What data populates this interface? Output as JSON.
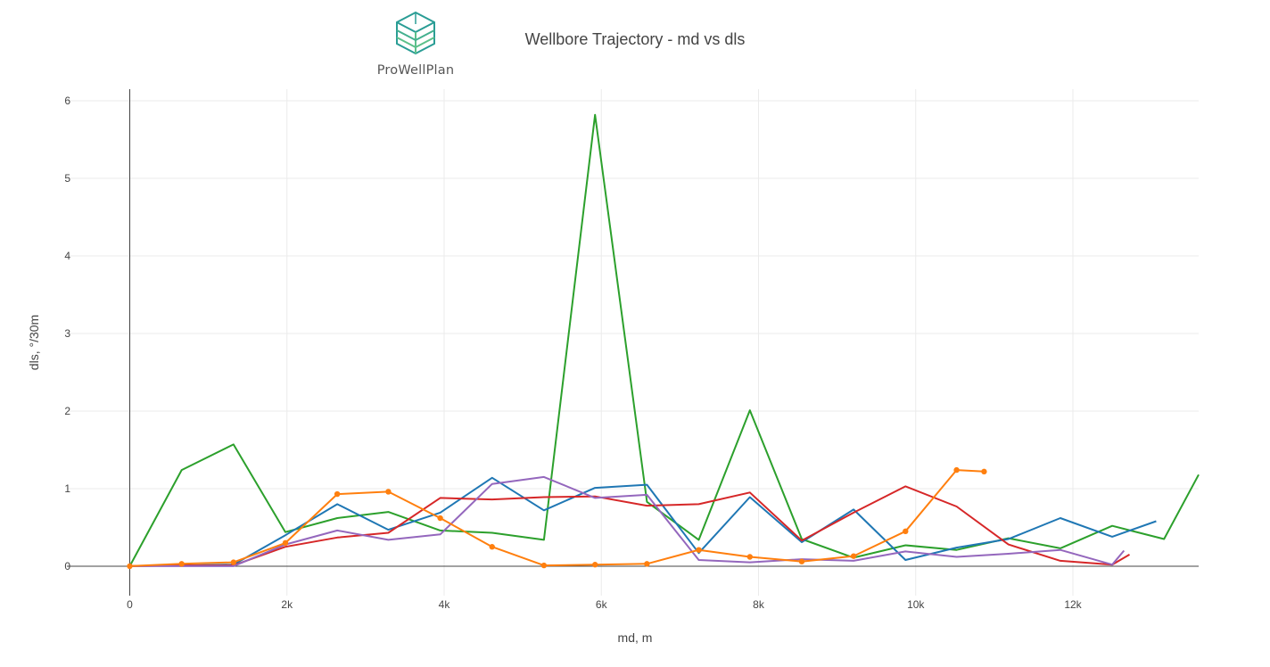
{
  "logo": {
    "text": "ProWellPlan"
  },
  "chart_data": {
    "type": "line",
    "title": "Wellbore Trajectory - md vs dls",
    "xlabel": "md, m",
    "ylabel": "dls, °/30m",
    "xlim": [
      -800,
      13600
    ],
    "ylim": [
      -0.38,
      6.15
    ],
    "xticks": [
      0,
      2000,
      4000,
      6000,
      8000,
      10000,
      12000
    ],
    "xtick_labels": [
      "0",
      "2k",
      "4k",
      "6k",
      "8k",
      "10k",
      "12k"
    ],
    "yticks": [
      0,
      1,
      2,
      3,
      4,
      5,
      6
    ],
    "ytick_labels": [
      "0",
      "1",
      "2",
      "3",
      "4",
      "5",
      "6"
    ],
    "grid": true,
    "legend": "none",
    "colors": {
      "blue": "#1f77b4",
      "orange": "#ff7f0e",
      "green": "#2ca02c",
      "red": "#d62728",
      "purple": "#9467bd"
    },
    "series": [
      {
        "color": "#2ca02c",
        "markers": false,
        "x": [
          0,
          660,
          1320,
          1980,
          2640,
          3290,
          3950,
          4610,
          5270,
          5920,
          6580,
          7240,
          7890,
          8550,
          9210,
          9870,
          10520,
          11180,
          11840,
          12500,
          13160,
          13600
        ],
        "y": [
          0,
          1.24,
          1.57,
          0.44,
          0.62,
          0.7,
          0.46,
          0.43,
          0.34,
          5.82,
          0.83,
          0.34,
          2.01,
          0.35,
          0.11,
          0.27,
          0.21,
          0.36,
          0.23,
          0.52,
          0.35,
          1.18
        ]
      },
      {
        "color": "#1f77b4",
        "markers": false,
        "x": [
          0,
          660,
          1320,
          1980,
          2640,
          3290,
          3950,
          4610,
          5270,
          5920,
          6580,
          7240,
          7890,
          8550,
          9210,
          9870,
          10520,
          11180,
          11840,
          12500,
          13060
        ],
        "y": [
          0,
          0.01,
          0.02,
          0.4,
          0.8,
          0.47,
          0.69,
          1.14,
          0.72,
          1.01,
          1.05,
          0.17,
          0.89,
          0.31,
          0.73,
          0.08,
          0.24,
          0.35,
          0.62,
          0.38,
          0.58
        ]
      },
      {
        "color": "#d62728",
        "markers": false,
        "x": [
          0,
          660,
          1320,
          1980,
          2640,
          3290,
          3950,
          4610,
          5270,
          5920,
          6580,
          7240,
          7890,
          8550,
          9210,
          9870,
          10520,
          11180,
          11840,
          12500,
          12720
        ],
        "y": [
          0,
          0.01,
          0.01,
          0.25,
          0.37,
          0.43,
          0.88,
          0.86,
          0.89,
          0.9,
          0.78,
          0.8,
          0.95,
          0.33,
          0.69,
          1.03,
          0.77,
          0.28,
          0.07,
          0.02,
          0.15
        ]
      },
      {
        "color": "#9467bd",
        "markers": false,
        "x": [
          0,
          660,
          1320,
          1980,
          2640,
          3290,
          3950,
          4610,
          5270,
          5920,
          6580,
          7240,
          7890,
          8550,
          9210,
          9870,
          10520,
          11180,
          11840,
          12500,
          12650
        ],
        "y": [
          0,
          0,
          0,
          0.28,
          0.46,
          0.34,
          0.41,
          1.06,
          1.15,
          0.88,
          0.92,
          0.08,
          0.05,
          0.09,
          0.07,
          0.19,
          0.12,
          0.16,
          0.21,
          0.02,
          0.2
        ]
      },
      {
        "color": "#ff7f0e",
        "markers": true,
        "x": [
          0,
          660,
          1320,
          1980,
          2640,
          3290,
          3950,
          4610,
          5270,
          5920,
          6580,
          7240,
          7890,
          8550,
          9210,
          9870,
          10520,
          10870
        ],
        "y": [
          0,
          0.03,
          0.05,
          0.3,
          0.93,
          0.96,
          0.62,
          0.25,
          0.01,
          0.02,
          0.03,
          0.21,
          0.12,
          0.06,
          0.13,
          0.45,
          1.24,
          1.22
        ]
      }
    ]
  }
}
